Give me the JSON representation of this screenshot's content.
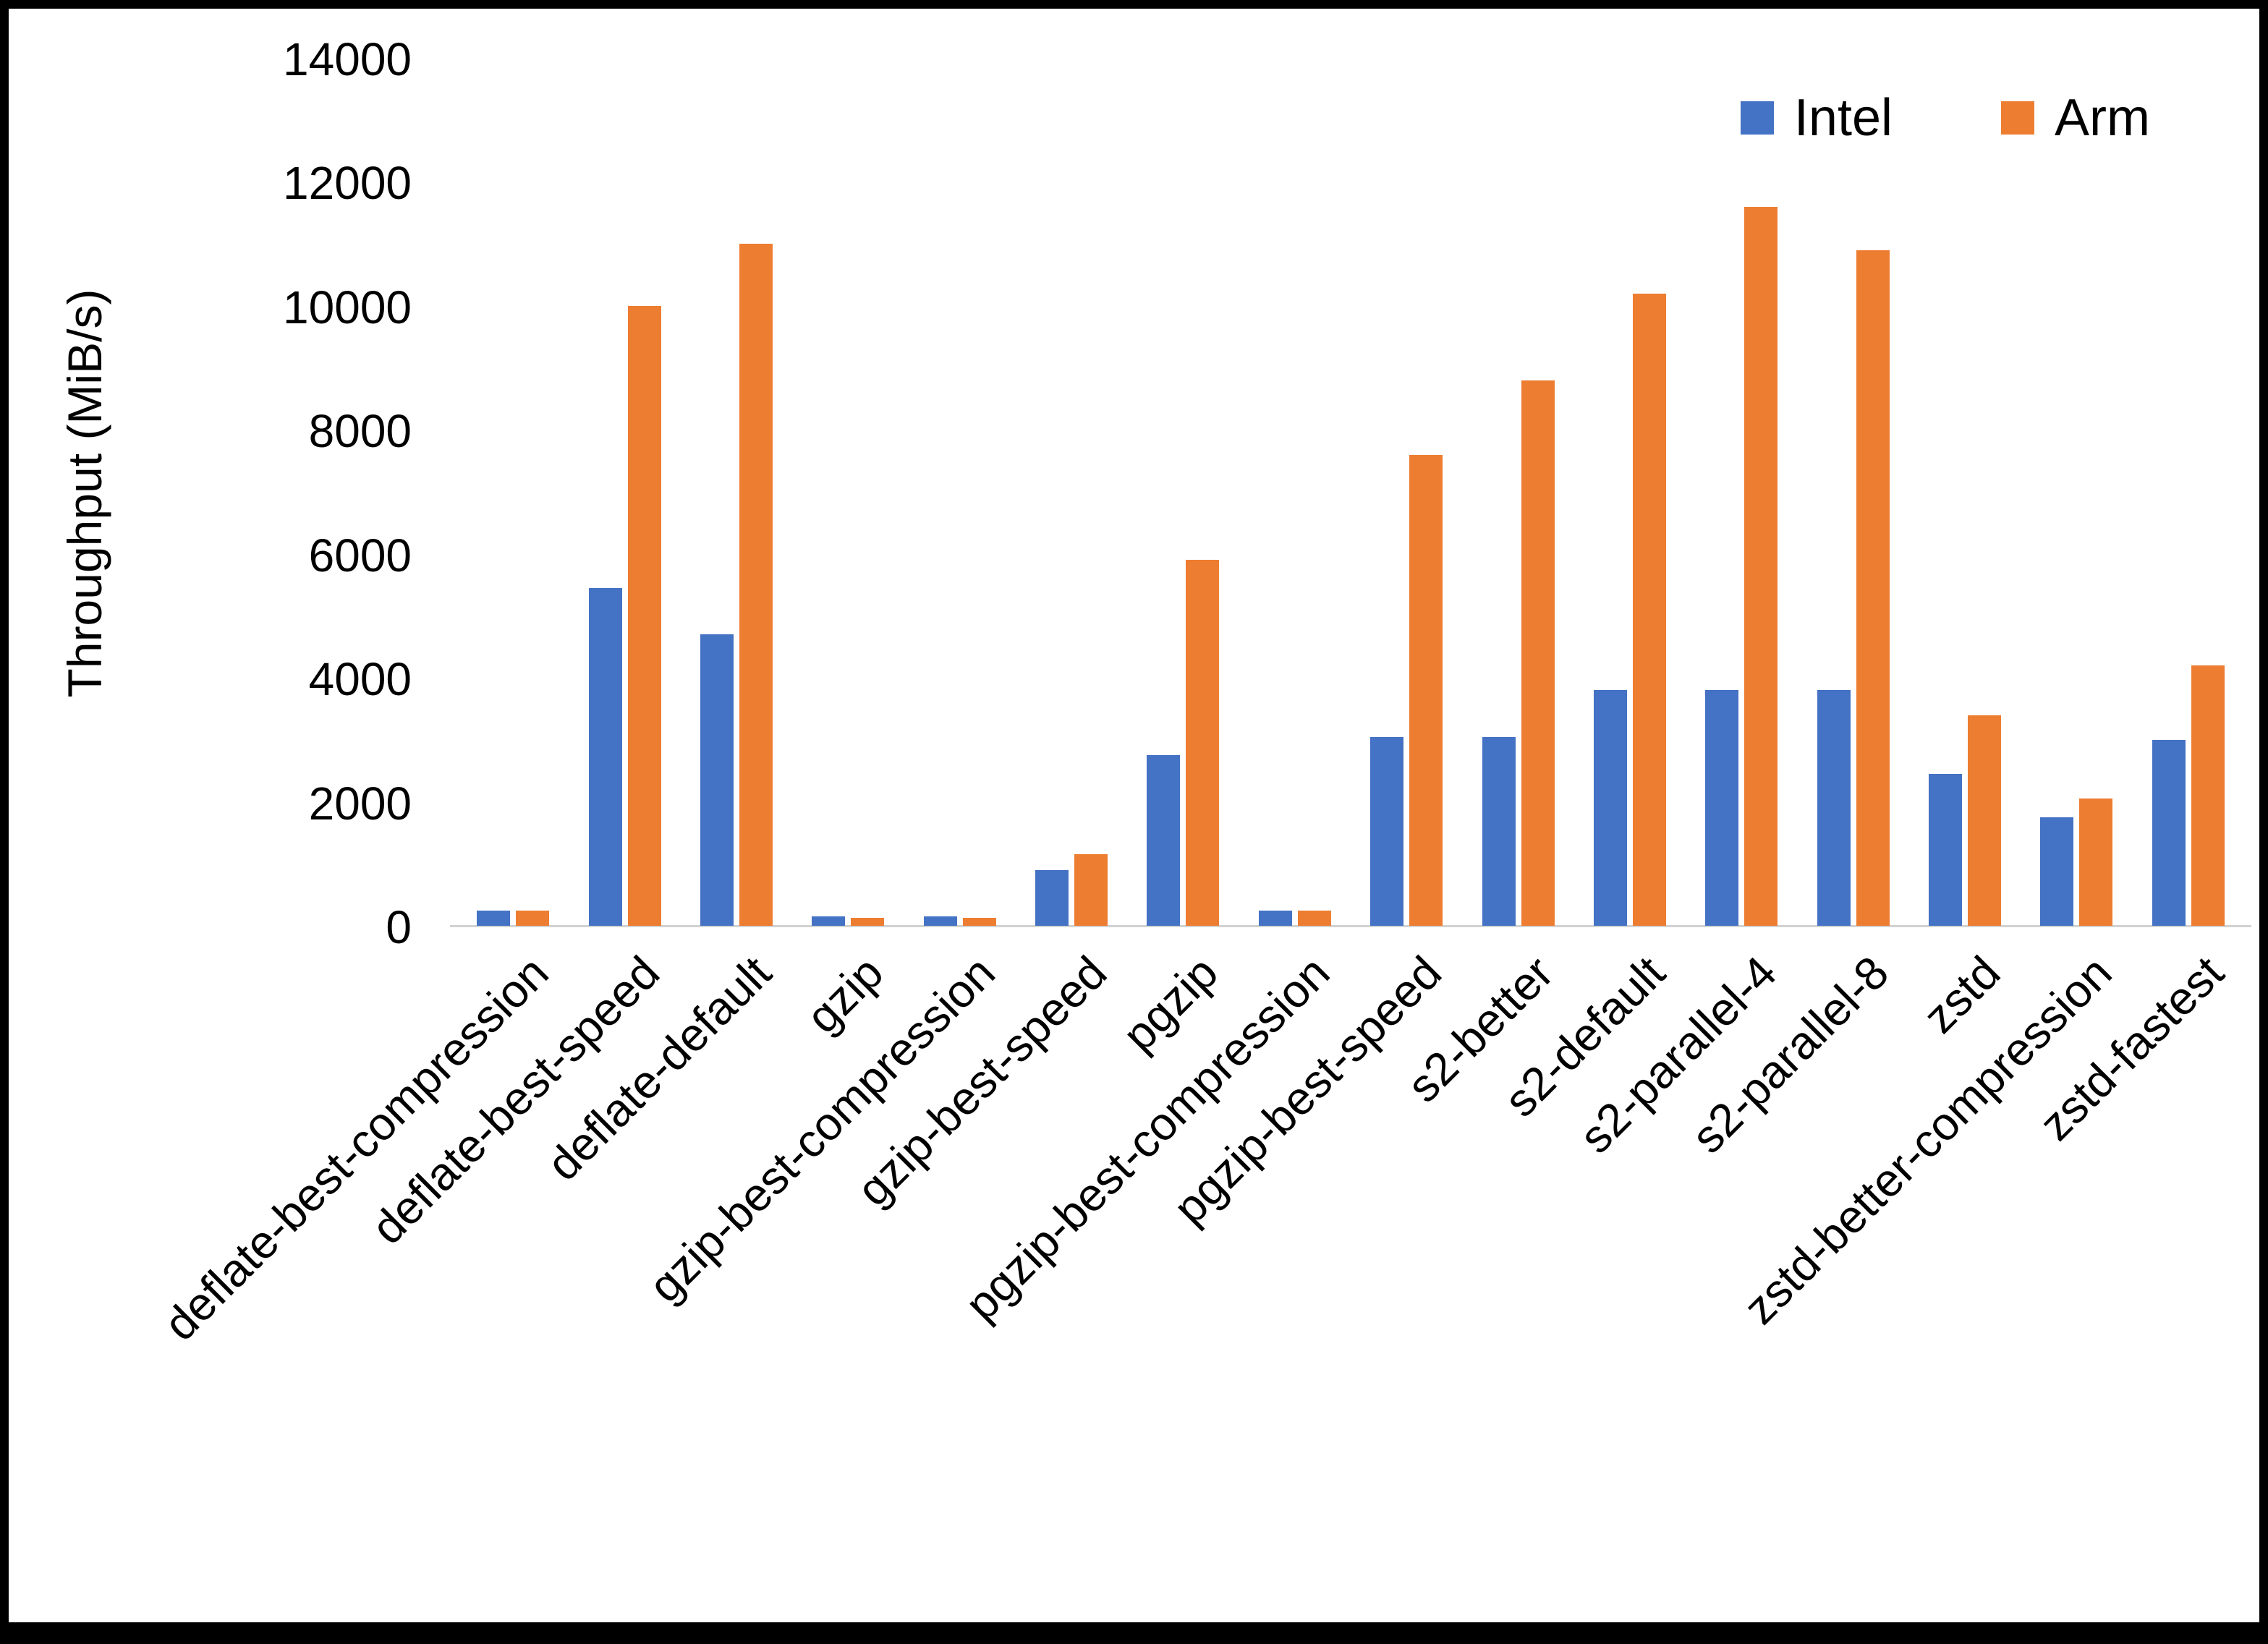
{
  "chart_data": {
    "type": "bar",
    "title": "",
    "xlabel": "",
    "ylabel": "Throughput (MiB/s)",
    "ylim": [
      0,
      14000
    ],
    "ytick_step": 2000,
    "grid": false,
    "legend_position": "top-right",
    "categories": [
      "deflate-best-compression",
      "deflate-best-speed",
      "deflate-default",
      "gzip",
      "gzip-best-compression",
      "gzip-best-speed",
      "pgzip",
      "pgzip-best-compression",
      "pgzip-best-speed",
      "s2-better",
      "s2-default",
      "s2-parallel-4",
      "s2-parallel-8",
      "zstd",
      "zstd-better-compression",
      "zstd-fastest"
    ],
    "series": [
      {
        "name": "Intel",
        "color": "#4472C4",
        "values": [
          250,
          5450,
          4700,
          150,
          150,
          900,
          2750,
          250,
          3050,
          3050,
          3800,
          3800,
          3800,
          2450,
          1750,
          3000
        ]
      },
      {
        "name": "Arm",
        "color": "#ED7D31",
        "values": [
          250,
          10000,
          11000,
          130,
          130,
          1150,
          5900,
          250,
          7600,
          8800,
          10200,
          11600,
          10900,
          3400,
          2050,
          4200
        ]
      }
    ]
  }
}
